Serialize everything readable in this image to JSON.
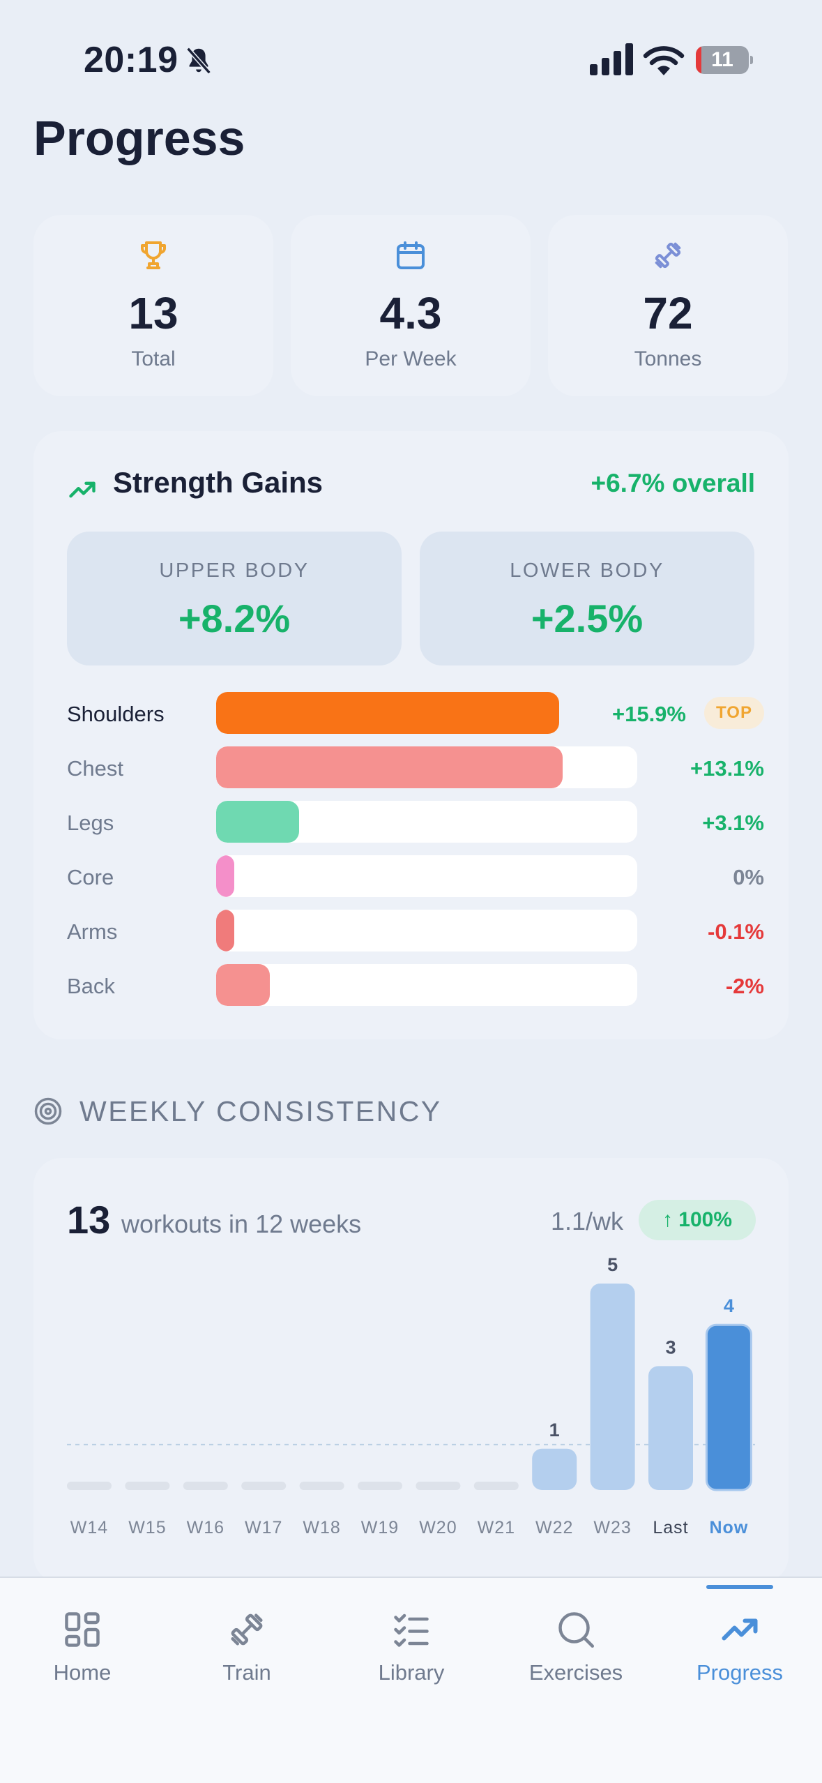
{
  "status_bar": {
    "time": "20:19",
    "battery": "11",
    "battery_level": 0.11
  },
  "page_title": "Progress",
  "stats": [
    {
      "value": "13",
      "label": "Total",
      "icon": "trophy-icon"
    },
    {
      "value": "4.3",
      "label": "Per Week",
      "icon": "calendar-icon"
    },
    {
      "value": "72",
      "label": "Tonnes",
      "icon": "dumbbell-icon"
    }
  ],
  "strength": {
    "title": "Strength Gains",
    "overall": "+6.7% overall",
    "upper_label": "UPPER BODY",
    "upper_value": "+8.2%",
    "lower_label": "LOWER BODY",
    "lower_value": "+2.5%",
    "top_badge": "TOP",
    "muscles": [
      {
        "name": "Shoulders",
        "pct": "+15.9%",
        "level": 0.815,
        "color": "#f97316",
        "top": true
      },
      {
        "name": "Chest",
        "pct": "+13.1%",
        "level": 0.823,
        "color": "#f59190"
      },
      {
        "name": "Legs",
        "pct": "+3.1%",
        "level": 0.197,
        "color": "#6fd9b1"
      },
      {
        "name": "Core",
        "pct": "0%",
        "level": 0.043,
        "color": "#f48fc9"
      },
      {
        "name": "Arms",
        "pct": "-0.1%",
        "level": 0.043,
        "color": "#f07b7b"
      },
      {
        "name": "Back",
        "pct": "-2%",
        "level": 0.128,
        "color": "#f59190"
      }
    ]
  },
  "weekly": {
    "section_title": "WEEKLY CONSISTENCY",
    "count": "13",
    "description": "workouts in 12 weeks",
    "rate": "1.1/wk",
    "change_badge": "↑ 100%"
  },
  "chart_data": {
    "type": "bar",
    "categories": [
      "W14",
      "W15",
      "W16",
      "W17",
      "W18",
      "W19",
      "W20",
      "W21",
      "W22",
      "W23",
      "Last",
      "Now"
    ],
    "values": [
      0,
      0,
      0,
      0,
      0,
      0,
      0,
      0,
      1,
      5,
      3,
      4
    ],
    "reference_line": 1.1,
    "ylim": [
      0,
      5
    ],
    "highlight": "Now",
    "colors": {
      "bar": "#b4cfee",
      "current": "#4a8fd9",
      "empty": "#dde2ea"
    }
  },
  "tabs": [
    {
      "label": "Home",
      "icon": "grid-icon",
      "active": false
    },
    {
      "label": "Train",
      "icon": "dumbbell-icon",
      "active": false
    },
    {
      "label": "Library",
      "icon": "checklist-icon",
      "active": false
    },
    {
      "label": "Exercises",
      "icon": "search-icon",
      "active": false
    },
    {
      "label": "Progress",
      "icon": "trending-up-icon",
      "active": true
    }
  ]
}
